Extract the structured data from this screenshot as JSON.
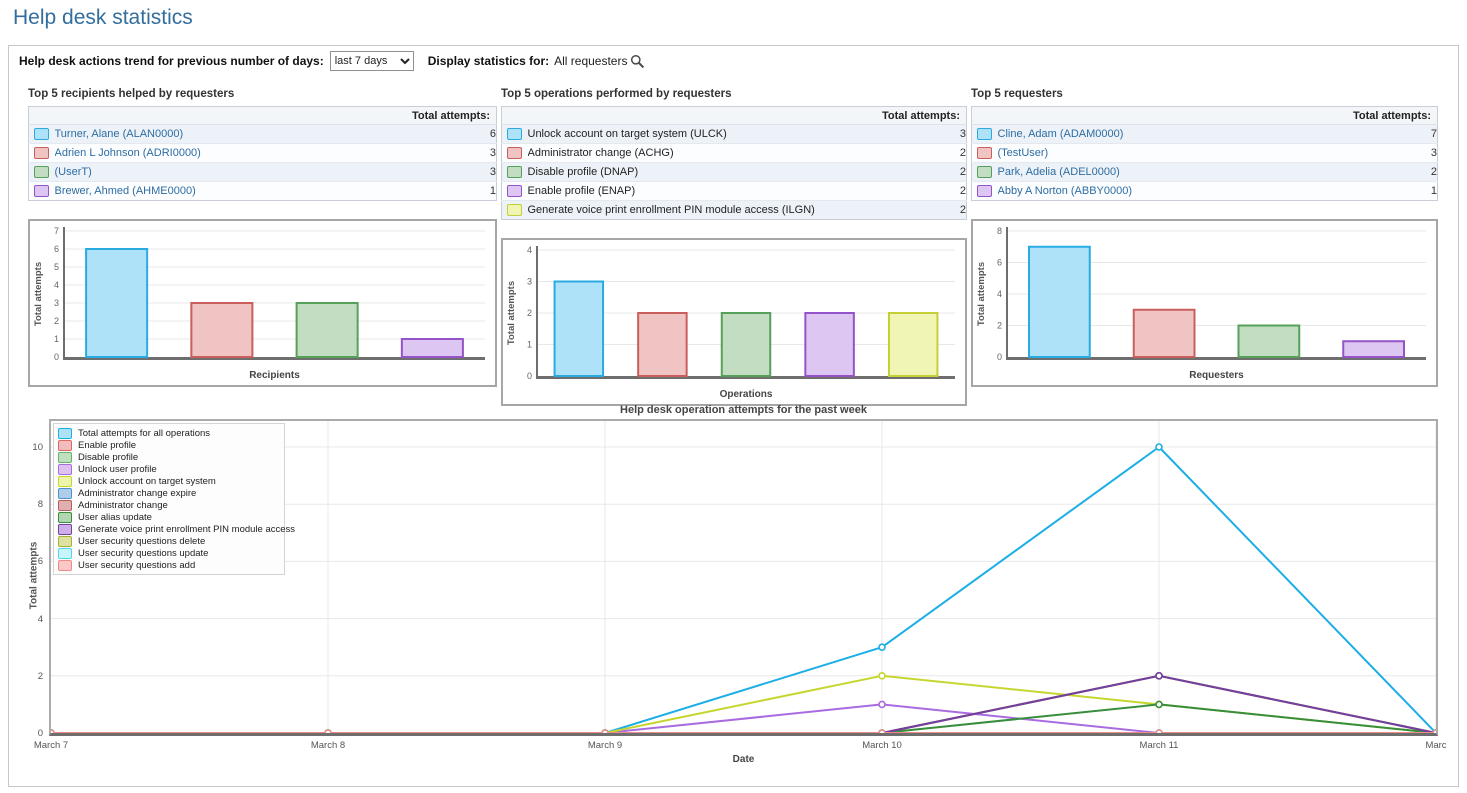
{
  "page_title": "Help desk statistics",
  "toolbar": {
    "trend_label": "Help desk actions trend for previous number of days:",
    "trend_select_value": "last 7 days",
    "display_label": "Display statistics for:",
    "display_value": "All requesters"
  },
  "panels": [
    {
      "title": "Top 5 recipients helped by requesters",
      "value_header": "Total attempts:",
      "rows_are_links": true,
      "rows": [
        {
          "label": "Turner, Alane (ALAN0000)",
          "value": 6,
          "fill": "#aee2f8",
          "stroke": "#29abe2"
        },
        {
          "label": "Adrien L Johnson (ADRI0000)",
          "value": 3,
          "fill": "#efc4c2",
          "stroke": "#c85f5c"
        },
        {
          "label": "(UserT)",
          "value": 3,
          "fill": "#c2ddc2",
          "stroke": "#57a05a"
        },
        {
          "label": "Brewer, Ahmed (AHME0000)",
          "value": 1,
          "fill": "#dec6f2",
          "stroke": "#9453c8"
        }
      ]
    },
    {
      "title": "Top 5 operations performed by requesters",
      "value_header": "Total attempts:",
      "rows_are_links": false,
      "rows": [
        {
          "label": "Unlock account on target system (ULCK)",
          "value": 3,
          "fill": "#aee2f8",
          "stroke": "#29abe2"
        },
        {
          "label": "Administrator change (ACHG)",
          "value": 2,
          "fill": "#efc4c2",
          "stroke": "#c85f5c"
        },
        {
          "label": "Disable profile (DNAP)",
          "value": 2,
          "fill": "#c2ddc2",
          "stroke": "#57a05a"
        },
        {
          "label": "Enable profile (ENAP)",
          "value": 2,
          "fill": "#dec6f2",
          "stroke": "#9453c8"
        },
        {
          "label": "Generate voice print enrollment PIN module access (ILGN)",
          "value": 2,
          "fill": "#f0f5b4",
          "stroke": "#c3cf35"
        }
      ]
    },
    {
      "title": "Top 5 requesters",
      "value_header": "Total attempts:",
      "rows_are_links": true,
      "rows": [
        {
          "label": "Cline, Adam (ADAM0000)",
          "value": 7,
          "fill": "#aee2f8",
          "stroke": "#29abe2"
        },
        {
          "label": "(TestUser)",
          "value": 3,
          "fill": "#efc4c2",
          "stroke": "#c85f5c"
        },
        {
          "label": "Park, Adelia (ADEL0000)",
          "value": 2,
          "fill": "#c2ddc2",
          "stroke": "#57a05a"
        },
        {
          "label": "Abby A Norton (ABBY0000)",
          "value": 1,
          "fill": "#dec6f2",
          "stroke": "#9453c8"
        }
      ]
    }
  ],
  "chart_data": [
    {
      "type": "bar",
      "title": "Top 5 recipients helped by requesters",
      "categories": [
        "Turner, Alane (ALAN0000)",
        "Adrien L Johnson (ADRI0000)",
        "(UserT)",
        "Brewer, Ahmed (AHME0000)"
      ],
      "values": [
        6,
        3,
        3,
        1
      ],
      "xlabel": "Recipients",
      "ylabel": "Total attempts",
      "ylim": [
        0,
        7
      ],
      "yticks": [
        0,
        1,
        2,
        3,
        4,
        5,
        6,
        7
      ],
      "grid": true,
      "colors": [
        {
          "fill": "#aee2f8",
          "stroke": "#29abe2"
        },
        {
          "fill": "#efc4c2",
          "stroke": "#c85f5c"
        },
        {
          "fill": "#c2ddc2",
          "stroke": "#57a05a"
        },
        {
          "fill": "#dec6f2",
          "stroke": "#9453c8"
        }
      ]
    },
    {
      "type": "bar",
      "title": "Top 5 operations performed by requesters",
      "categories": [
        "Unlock account on target system (ULCK)",
        "Administrator change (ACHG)",
        "Disable profile (DNAP)",
        "Enable profile (ENAP)",
        "Generate voice print enrollment PIN module access (ILGN)"
      ],
      "values": [
        3,
        2,
        2,
        2,
        2
      ],
      "xlabel": "Operations",
      "ylabel": "Total attempts",
      "ylim": [
        0,
        4
      ],
      "yticks": [
        0,
        1,
        2,
        3,
        4
      ],
      "grid": true,
      "colors": [
        {
          "fill": "#aee2f8",
          "stroke": "#29abe2"
        },
        {
          "fill": "#efc4c2",
          "stroke": "#c85f5c"
        },
        {
          "fill": "#c2ddc2",
          "stroke": "#57a05a"
        },
        {
          "fill": "#dec6f2",
          "stroke": "#9453c8"
        },
        {
          "fill": "#f0f5b4",
          "stroke": "#c3cf35"
        }
      ]
    },
    {
      "type": "bar",
      "title": "Top 5 requesters",
      "categories": [
        "Cline, Adam (ADAM0000)",
        "(TestUser)",
        "Park, Adelia (ADEL0000)",
        "Abby A Norton (ABBY0000)"
      ],
      "values": [
        7,
        3,
        2,
        1
      ],
      "xlabel": "Requesters",
      "ylabel": "Total attempts",
      "ylim": [
        0,
        8
      ],
      "yticks": [
        0,
        2,
        4,
        6,
        8
      ],
      "grid": true,
      "colors": [
        {
          "fill": "#aee2f8",
          "stroke": "#29abe2"
        },
        {
          "fill": "#efc4c2",
          "stroke": "#c85f5c"
        },
        {
          "fill": "#c2ddc2",
          "stroke": "#57a05a"
        },
        {
          "fill": "#dec6f2",
          "stroke": "#9453c8"
        }
      ]
    },
    {
      "type": "line",
      "title": "Help desk operation attempts for the past week",
      "x": [
        "March 7",
        "March 8",
        "March 9",
        "March 10",
        "March 11",
        "Marc"
      ],
      "xlabel": "Date",
      "ylabel": "Total attempts",
      "ylim": [
        0,
        10
      ],
      "yticks": [
        0,
        2,
        4,
        6,
        8,
        10
      ],
      "grid": true,
      "legend_position": "top-left",
      "series": [
        {
          "name": "Total attempts for all operations",
          "color": "#1caee6",
          "fill": "#aee2f8",
          "values": [
            0,
            0,
            0,
            3,
            10,
            0
          ]
        },
        {
          "name": "Enable profile",
          "color": "#dd6762",
          "fill": "#f0bcbc",
          "values": [
            0,
            0,
            0,
            0,
            2,
            0
          ]
        },
        {
          "name": "Disable profile",
          "color": "#63b663",
          "fill": "#bfe0bf",
          "values": [
            0,
            0,
            0,
            0,
            2,
            0
          ]
        },
        {
          "name": "Unlock user profile",
          "color": "#a96be0",
          "fill": "#ddc2f0",
          "values": [
            0,
            0,
            0,
            1,
            0,
            0
          ]
        },
        {
          "name": "Unlock account on target system",
          "color": "#c6d62f",
          "fill": "#eef4ac",
          "values": [
            0,
            0,
            0,
            2,
            1,
            0
          ]
        },
        {
          "name": "Administrator change expire",
          "color": "#4f93ce",
          "fill": "#aecde8",
          "values": [
            0,
            0,
            0,
            0,
            0,
            0
          ]
        },
        {
          "name": "Administrator change",
          "color": "#b85c5c",
          "fill": "#e0b0b0",
          "values": [
            0,
            0,
            0,
            0,
            2,
            0
          ]
        },
        {
          "name": "User alias update",
          "color": "#388e3c",
          "fill": "#b2d6b2",
          "values": [
            0,
            0,
            0,
            0,
            1,
            0
          ]
        },
        {
          "name": "Generate voice print enrollment PIN module access",
          "color": "#7140a0",
          "fill": "#cdaee8",
          "values": [
            0,
            0,
            0,
            0,
            2,
            0
          ]
        },
        {
          "name": "User security questions delete",
          "color": "#a8b42e",
          "fill": "#dde2a2",
          "values": [
            0,
            0,
            0,
            0,
            0,
            0
          ]
        },
        {
          "name": "User security questions update",
          "color": "#55d4ee",
          "fill": "#c8f4fc",
          "values": [
            0,
            0,
            0,
            0,
            0,
            0
          ]
        },
        {
          "name": "User security questions add",
          "color": "#ef8c88",
          "fill": "#fac8c8",
          "values": [
            0,
            0,
            0,
            0,
            0,
            0
          ]
        }
      ]
    }
  ]
}
